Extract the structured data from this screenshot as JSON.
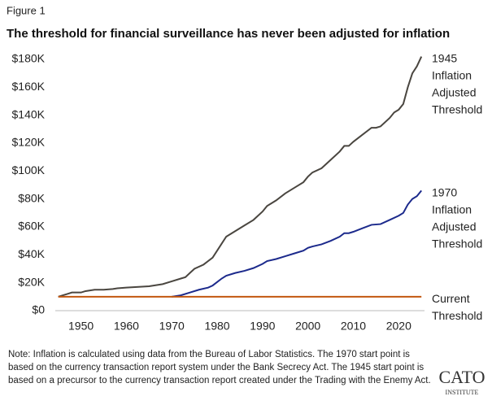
{
  "figure_label": "Figure 1",
  "chart_data": {
    "type": "line",
    "title": "The threshold for financial surveillance has never been adjusted for inflation",
    "xlim": [
      1944.7,
      2025.5
    ],
    "xticks": [
      1950,
      1960,
      1970,
      1980,
      1990,
      2000,
      2010,
      2020
    ],
    "ylim": [
      0,
      180000
    ],
    "yticks": [
      {
        "value": 0,
        "label": "$0"
      },
      {
        "value": 20000,
        "label": "$20K"
      },
      {
        "value": 40000,
        "label": "$40K"
      },
      {
        "value": 60000,
        "label": "$60K"
      },
      {
        "value": 80000,
        "label": "$80K"
      },
      {
        "value": 100000,
        "label": "$100K"
      },
      {
        "value": 120000,
        "label": "$120K"
      },
      {
        "value": 140000,
        "label": "$140K"
      },
      {
        "value": 160000,
        "label": "$160K"
      },
      {
        "value": 180000,
        "label": "$180K"
      }
    ],
    "grid": false,
    "series": [
      {
        "name": "1945 Inflation Adjusted Threshold",
        "color": "#4a4640",
        "x": [
          1945,
          1947,
          1948,
          1950,
          1951,
          1953,
          1955,
          1957,
          1958,
          1960,
          1965,
          1968,
          1970,
          1972,
          1973,
          1974,
          1975,
          1977,
          1979,
          1980,
          1981,
          1982,
          1984,
          1986,
          1988,
          1990,
          1991,
          1993,
          1995,
          1997,
          1999,
          2000,
          2001,
          2003,
          2005,
          2007,
          2008,
          2009,
          2010,
          2012,
          2014,
          2015,
          2016,
          2018,
          2019,
          2020,
          2021,
          2022,
          2023,
          2024,
          2025
        ],
        "values": [
          10000,
          12000,
          13000,
          13000,
          14000,
          15000,
          15000,
          15500,
          16000,
          16500,
          17500,
          19000,
          21000,
          23000,
          24000,
          27000,
          30000,
          33000,
          38000,
          43000,
          48000,
          53000,
          57000,
          61000,
          65000,
          71000,
          75000,
          79000,
          84000,
          88000,
          92000,
          96000,
          99000,
          102000,
          108000,
          114000,
          118000,
          118000,
          121000,
          126000,
          131000,
          131000,
          132000,
          138000,
          142000,
          144000,
          148000,
          160000,
          170000,
          175000,
          182000
        ]
      },
      {
        "name": "1970 Inflation Adjusted Threshold",
        "color": "#1c2a8c",
        "x": [
          1970,
          1972,
          1974,
          1976,
          1978,
          1979,
          1980,
          1981,
          1982,
          1984,
          1986,
          1988,
          1990,
          1991,
          1993,
          1995,
          1997,
          1999,
          2000,
          2001,
          2003,
          2005,
          2007,
          2008,
          2009,
          2010,
          2012,
          2014,
          2016,
          2018,
          2020,
          2021,
          2022,
          2023,
          2024,
          2025
        ],
        "values": [
          10000,
          11000,
          13000,
          15000,
          16500,
          18000,
          20500,
          23000,
          25000,
          27000,
          28500,
          30500,
          33500,
          35500,
          37000,
          39000,
          41000,
          43000,
          45000,
          46000,
          47500,
          50000,
          53000,
          55500,
          55500,
          56500,
          59000,
          61500,
          62000,
          65000,
          68000,
          70000,
          76000,
          80000,
          82000,
          86000
        ]
      },
      {
        "name": "Current Threshold",
        "color": "#c2570f",
        "x": [
          1945,
          2025
        ],
        "values": [
          10000,
          10000
        ]
      }
    ]
  },
  "note": "Note: Inflation is calculated using data from the Bureau of Labor Statistics. The 1970 start point is based on the currency transaction report system under the Bank Secrecy Act. The 1945 start point is based on a precursor to the currency transaction report created under the Trading with the Enemy Act.",
  "logo": {
    "name": "CATO",
    "subtitle": "INSTITUTE"
  }
}
